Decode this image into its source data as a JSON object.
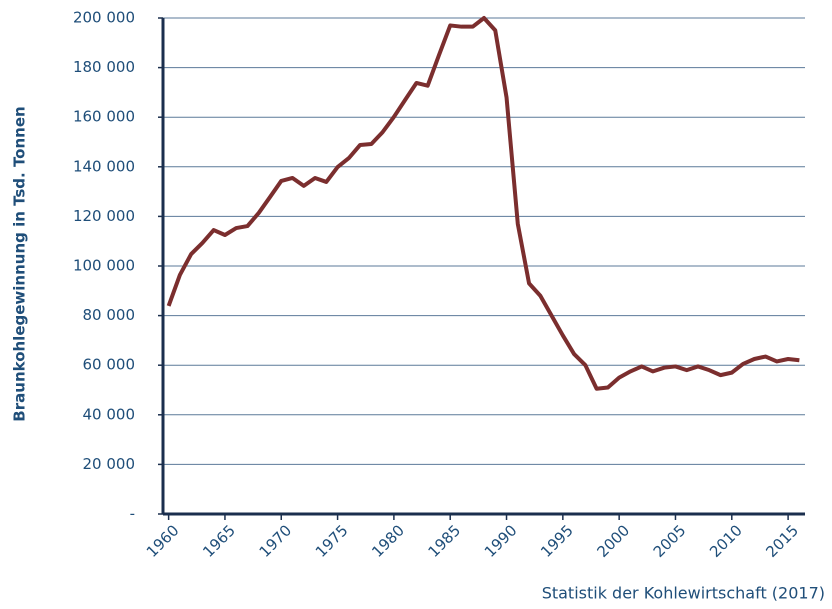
{
  "chart_data": {
    "type": "line",
    "ylabel": "Braunkohlegewinnung in Tsd. Tonnen",
    "source": "Statistik der Kohlewirtschaft (2017)",
    "x": [
      1960,
      1961,
      1962,
      1963,
      1964,
      1965,
      1966,
      1967,
      1968,
      1969,
      1970,
      1971,
      1972,
      1973,
      1974,
      1975,
      1976,
      1977,
      1978,
      1979,
      1980,
      1981,
      1982,
      1983,
      1984,
      1985,
      1986,
      1987,
      1988,
      1989,
      1990,
      1991,
      1992,
      1993,
      1994,
      1995,
      1996,
      1997,
      1998,
      1999,
      2000,
      2001,
      2002,
      2003,
      2004,
      2005,
      2006,
      2007,
      2008,
      2009,
      2010,
      2011,
      2012,
      2013,
      2014,
      2015,
      2016
    ],
    "values": [
      83900,
      96400,
      104800,
      109300,
      114500,
      112500,
      115300,
      116100,
      121400,
      127800,
      134300,
      135500,
      132300,
      135500,
      133900,
      139900,
      143500,
      148800,
      149200,
      154000,
      160100,
      167000,
      173800,
      172700,
      185000,
      197000,
      196500,
      196500,
      200000,
      195000,
      168000,
      117000,
      93000,
      88000,
      80000,
      72000,
      64500,
      60000,
      50500,
      51000,
      55000,
      57500,
      59500,
      57500,
      59000,
      59500,
      58000,
      59500,
      58000,
      56000,
      57000,
      60500,
      62500,
      63500,
      61500,
      62500,
      62000
    ],
    "color": "#7b2e2e",
    "xlim": [
      1959.5,
      2016.5
    ],
    "xticks": [
      1960,
      1965,
      1970,
      1975,
      1980,
      1985,
      1990,
      1995,
      2000,
      2005,
      2010,
      2015
    ],
    "ylim": [
      0,
      200000
    ],
    "yticks": [
      {
        "value": 0,
        "label": "-"
      },
      {
        "value": 20000,
        "label": "20 000"
      },
      {
        "value": 40000,
        "label": "40 000"
      },
      {
        "value": 60000,
        "label": "60 000"
      },
      {
        "value": 80000,
        "label": "80 000"
      },
      {
        "value": 100000,
        "label": "100 000"
      },
      {
        "value": 120000,
        "label": "120 000"
      },
      {
        "value": 140000,
        "label": "140 000"
      },
      {
        "value": 160000,
        "label": "160 000"
      },
      {
        "value": 180000,
        "label": "180 000"
      },
      {
        "value": 200000,
        "label": "200 000"
      }
    ],
    "grid": true
  }
}
